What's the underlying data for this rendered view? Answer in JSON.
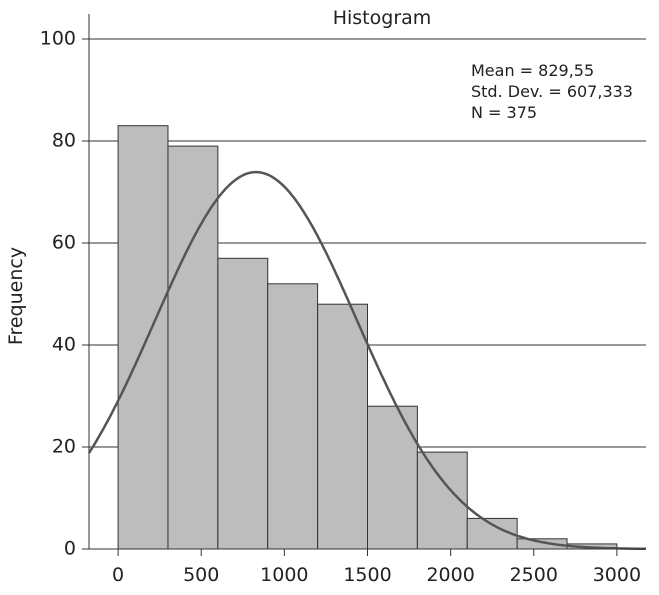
{
  "chart_data": {
    "type": "bar",
    "title": "Histogram",
    "xlabel": "",
    "ylabel": "Frequency",
    "xlim": [
      -175,
      3175
    ],
    "ylim": [
      0,
      100
    ],
    "x_ticks": [
      0,
      500,
      1000,
      1500,
      2000,
      2500,
      3000
    ],
    "y_ticks": [
      0,
      20,
      40,
      60,
      80,
      100
    ],
    "grid": "horizontal",
    "bin_width": 300,
    "bins": [
      {
        "start": 0,
        "end": 300,
        "value": 83
      },
      {
        "start": 300,
        "end": 600,
        "value": 79
      },
      {
        "start": 600,
        "end": 900,
        "value": 57
      },
      {
        "start": 900,
        "end": 1200,
        "value": 52
      },
      {
        "start": 1200,
        "end": 1500,
        "value": 48
      },
      {
        "start": 1500,
        "end": 1800,
        "value": 28
      },
      {
        "start": 1800,
        "end": 2100,
        "value": 19
      },
      {
        "start": 2100,
        "end": 2400,
        "value": 6
      },
      {
        "start": 2400,
        "end": 2700,
        "value": 2
      },
      {
        "start": 2700,
        "end": 3000,
        "value": 1
      }
    ],
    "normal_curve": {
      "mean": 829.55,
      "std": 607.333,
      "n": 375
    },
    "stats_lines": [
      "Mean = 829,55",
      "Std. Dev. = 607,333",
      "N = 375"
    ],
    "colors": {
      "bar_fill": "#bdbdbd",
      "bar_stroke": "#333333",
      "curve": "#555555",
      "grid": "#333333"
    }
  }
}
